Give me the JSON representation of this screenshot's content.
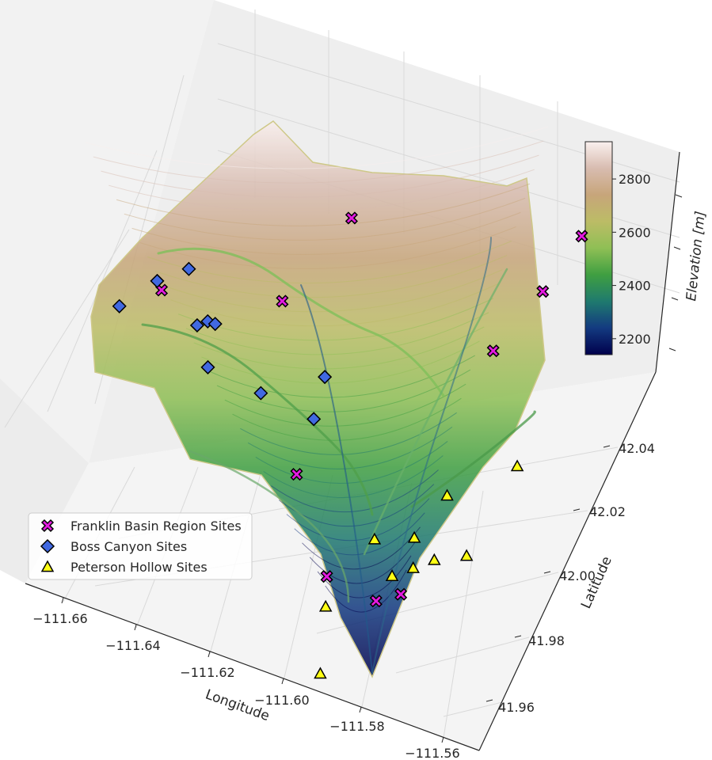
{
  "chart_data": {
    "type": "scatter",
    "subtype": "3d-terrain-surface-with-markers",
    "title": "",
    "xlabel": "Longitude",
    "ylabel": "Latitude",
    "zlabel": "Elevation [m]",
    "x_ticks": [
      "−111.66",
      "−111.64",
      "−111.62",
      "−111.60",
      "−111.58",
      "−111.56"
    ],
    "y_ticks": [
      "41.96",
      "41.98",
      "42.00",
      "42.02",
      "42.04"
    ],
    "colorbar": {
      "label": "Elevation [m]",
      "ticks": [
        "2200",
        "2400",
        "2600",
        "2800"
      ],
      "range": [
        2140,
        2940
      ],
      "colormap_stops": [
        "#00004c",
        "#133a80",
        "#1f7a6e",
        "#3f9f41",
        "#8fbf55",
        "#bcbc66",
        "#c7a57a",
        "#d8bcb0",
        "#faf0ee"
      ]
    },
    "grid": true,
    "legend_position": "lower-left",
    "series": [
      {
        "name": "Franklin Basin Region Sites",
        "marker": "X",
        "color": "#e41ae1",
        "points": [
          {
            "lon": -111.6185,
            "lat": 42.0455
          },
          {
            "lon": -111.5635,
            "lat": 42.0535
          },
          {
            "lon": -111.5665,
            "lat": 42.0445
          },
          {
            "lon": -111.5715,
            "lat": 42.0345
          },
          {
            "lon": -111.6255,
            "lat": 42.0315
          },
          {
            "lon": -111.6545,
            "lat": 42.0275
          },
          {
            "lon": -111.6035,
            "lat": 42.0095
          },
          {
            "lon": -111.5855,
            "lat": 41.9975
          },
          {
            "lon": -111.5715,
            "lat": 41.9965
          },
          {
            "lon": -111.5665,
            "lat": 41.9985
          }
        ]
      },
      {
        "name": "Boss Canyon Sites",
        "marker": "D",
        "color": "#4169e1",
        "points": [
          {
            "lon": -111.6505,
            "lat": 42.0315
          },
          {
            "lon": -111.6565,
            "lat": 42.0285
          },
          {
            "lon": -111.6625,
            "lat": 42.0235
          },
          {
            "lon": -111.6425,
            "lat": 42.0245
          },
          {
            "lon": -111.6405,
            "lat": 42.0255
          },
          {
            "lon": -111.6385,
            "lat": 42.0255
          },
          {
            "lon": -111.6355,
            "lat": 42.0195
          },
          {
            "lon": -111.6205,
            "lat": 42.0185
          },
          {
            "lon": -111.6075,
            "lat": 42.0235
          },
          {
            "lon": -111.6055,
            "lat": 42.0175
          }
        ]
      },
      {
        "name": "Peterson Hollow Sites",
        "marker": "^",
        "color": "#ffff14",
        "points": [
          {
            "lon": -111.5535,
            "lat": 42.0205
          },
          {
            "lon": -111.5665,
            "lat": 42.0135
          },
          {
            "lon": -111.5785,
            "lat": 42.0045
          },
          {
            "lon": -111.5695,
            "lat": 42.0065
          },
          {
            "lon": -111.5555,
            "lat": 42.0065
          },
          {
            "lon": -111.5625,
            "lat": 42.0045
          },
          {
            "lon": -111.5665,
            "lat": 42.0025
          },
          {
            "lon": -111.5705,
            "lat": 42.0005
          },
          {
            "lon": -111.5825,
            "lat": 41.9935
          },
          {
            "lon": -111.5765,
            "lat": 41.9845
          }
        ]
      }
    ]
  },
  "legend": {
    "items": [
      {
        "label": "Franklin Basin Region Sites",
        "marker": "X",
        "color": "#e41ae1"
      },
      {
        "label": "Boss Canyon Sites",
        "marker": "D",
        "color": "#4169e1"
      },
      {
        "label": "Peterson Hollow Sites",
        "marker": "^",
        "color": "#ffff14"
      }
    ]
  }
}
